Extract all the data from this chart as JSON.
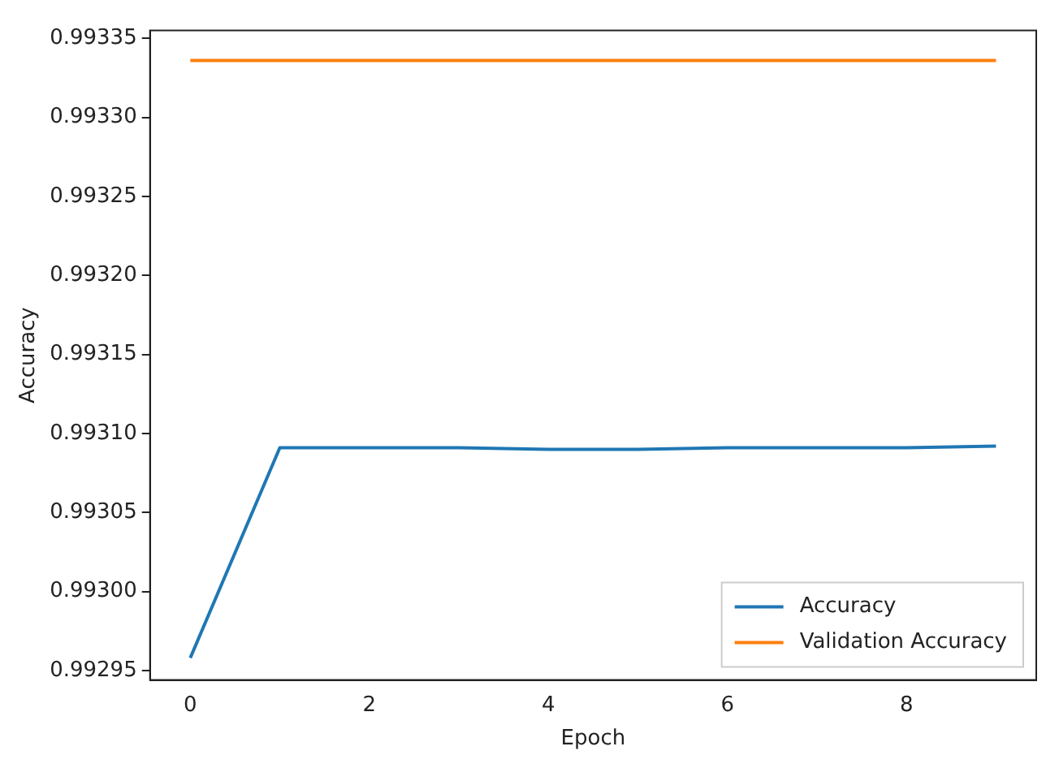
{
  "chart_data": {
    "type": "line",
    "xlabel": "Epoch",
    "ylabel": "Accuracy",
    "x": [
      0,
      1,
      2,
      3,
      4,
      5,
      6,
      7,
      8,
      9
    ],
    "series": [
      {
        "name": "Accuracy",
        "color": "#1f77b4",
        "values": [
          0.992958,
          0.993091,
          0.993091,
          0.993091,
          0.99309,
          0.99309,
          0.993091,
          0.993091,
          0.993091,
          0.993092
        ]
      },
      {
        "name": "Validation Accuracy",
        "color": "#ff7f0e",
        "values": [
          0.993336,
          0.993336,
          0.993336,
          0.993336,
          0.993336,
          0.993336,
          0.993336,
          0.993336,
          0.993336,
          0.993336
        ]
      }
    ],
    "xlim": [
      -0.45,
      9.45
    ],
    "xticks": [
      0,
      2,
      4,
      6,
      8
    ],
    "ylim": [
      0.992944,
      0.993355
    ],
    "yticks": [
      0.99295,
      {
        "value": 0.993,
        "label": "0.99300"
      },
      0.99305,
      {
        "value": 0.9931,
        "label": "0.99310"
      },
      0.99315,
      {
        "value": 0.9932,
        "label": "0.99320"
      },
      0.99325,
      {
        "value": 0.9933,
        "label": "0.99330"
      },
      0.99335
    ],
    "grid": false,
    "legend": "bottom right",
    "marker": "none",
    "line_style": "solid"
  }
}
